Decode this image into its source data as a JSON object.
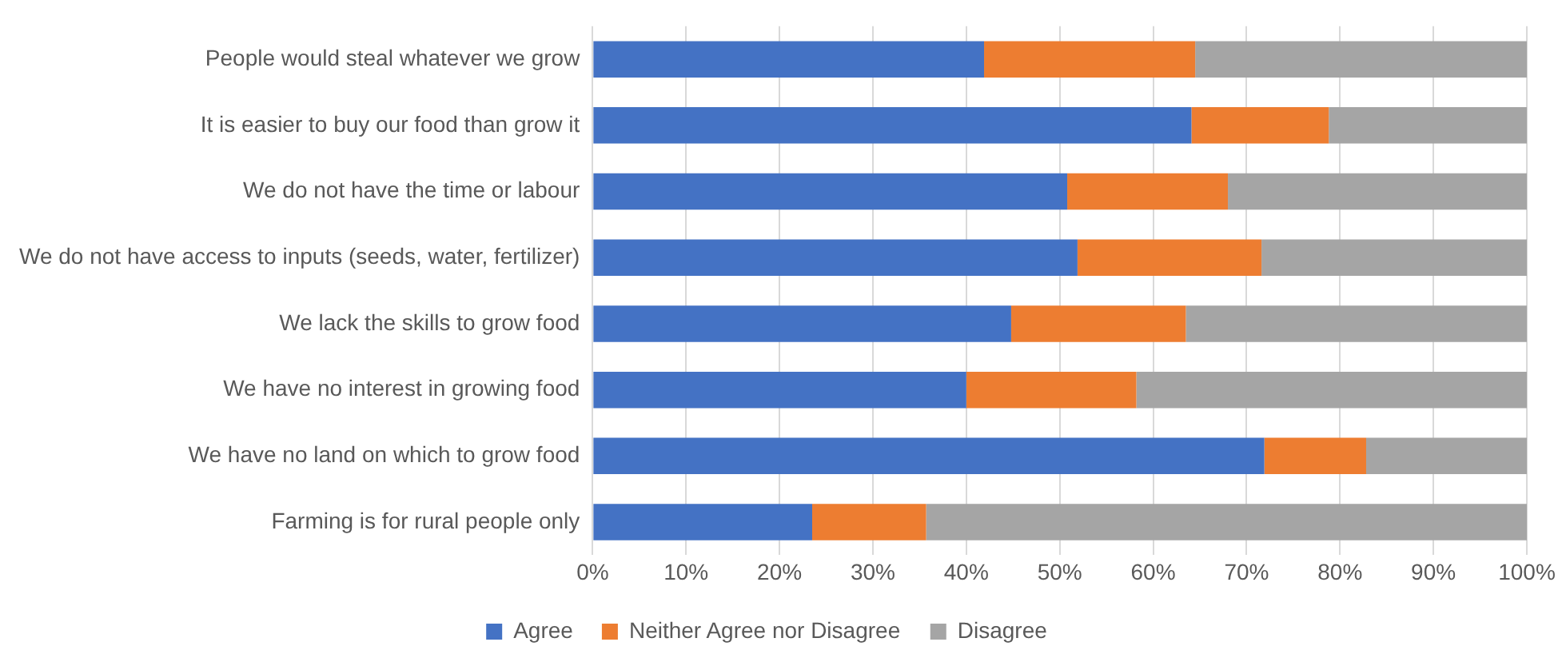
{
  "chart_data": {
    "type": "bar",
    "orientation": "horizontal",
    "stacked": true,
    "categories": [
      "People would steal whatever we grow",
      "It is easier to buy our food than grow it",
      "We do not have the time or labour",
      "We do not have access to inputs (seeds, water, fertilizer)",
      "We lack the skills to grow food",
      "We have no interest in growing food",
      "We have no land on which to grow food",
      "Farming is for rural people only"
    ],
    "series": [
      {
        "name": "Agree",
        "color": "#4472c4",
        "values": [
          41.9,
          64.1,
          50.8,
          51.9,
          44.8,
          40.0,
          71.9,
          23.5
        ]
      },
      {
        "name": "Neither Agree nor Disagree",
        "color": "#ed7d31",
        "values": [
          22.6,
          14.7,
          17.2,
          19.7,
          18.7,
          18.2,
          10.9,
          12.2
        ]
      },
      {
        "name": "Disagree",
        "color": "#a5a5a5",
        "values": [
          35.5,
          21.2,
          32.0,
          28.4,
          36.5,
          41.8,
          17.2,
          64.3
        ]
      }
    ],
    "xlim": [
      0,
      100
    ],
    "xticks": [
      {
        "value": 0,
        "label": "0%"
      },
      {
        "value": 10,
        "label": "10%"
      },
      {
        "value": 20,
        "label": "20%"
      },
      {
        "value": 30,
        "label": "30%"
      },
      {
        "value": 40,
        "label": "40%"
      },
      {
        "value": 50,
        "label": "50%"
      },
      {
        "value": 60,
        "label": "60%"
      },
      {
        "value": 70,
        "label": "70%"
      },
      {
        "value": 80,
        "label": "80%"
      },
      {
        "value": 90,
        "label": "90%"
      },
      {
        "value": 100,
        "label": "100%"
      }
    ],
    "grid": "x",
    "legend": "bottom"
  }
}
